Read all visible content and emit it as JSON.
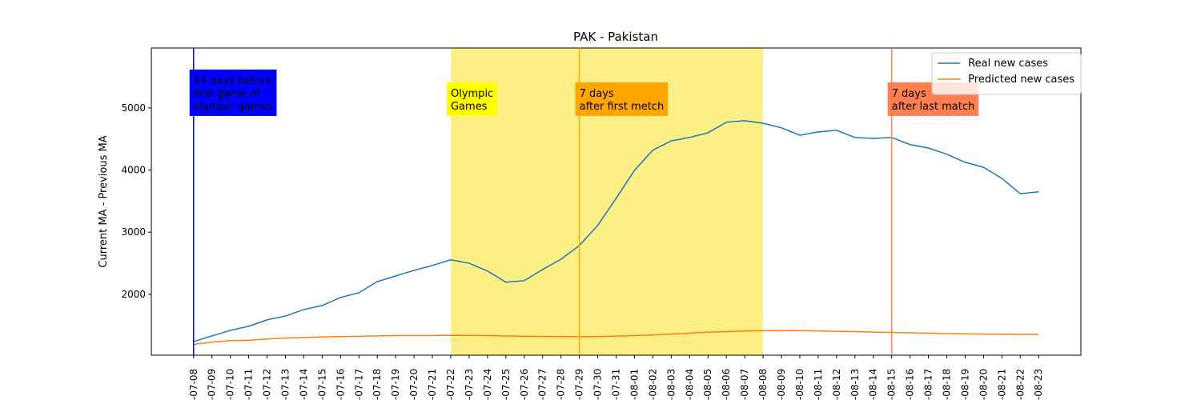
{
  "chart_data": {
    "type": "line",
    "title": "PAK - Pakistan",
    "y_label": "Current MA - Previous MA",
    "categories": [
      "-07-08",
      "-07-09",
      "-07-10",
      "-07-11",
      "-07-12",
      "-07-13",
      "-07-14",
      "-07-15",
      "-07-16",
      "-07-17",
      "-07-18",
      "-07-19",
      "-07-20",
      "-07-21",
      "-07-22",
      "-07-23",
      "-07-24",
      "-07-25",
      "-07-26",
      "-07-27",
      "-07-28",
      "-07-29",
      "-07-30",
      "-07-31",
      "-08-01",
      "-08-02",
      "-08-03",
      "-08-04",
      "-08-05",
      "-08-06",
      "-08-07",
      "-08-08",
      "-08-09",
      "-08-10",
      "-08-11",
      "-08-12",
      "-08-13",
      "-08-14",
      "-08-15",
      "-08-16",
      "-08-17",
      "-08-18",
      "-08-19",
      "-08-20",
      "-08-21",
      "-08-22",
      "-08-23"
    ],
    "series": [
      {
        "name": "Real new cases",
        "color": "#1f77b4",
        "values": [
          1240,
          1330,
          1420,
          1485,
          1590,
          1650,
          1755,
          1820,
          1950,
          2025,
          2205,
          2295,
          2385,
          2465,
          2555,
          2500,
          2375,
          2195,
          2220,
          2400,
          2565,
          2785,
          3110,
          3545,
          3995,
          4320,
          4470,
          4525,
          4600,
          4770,
          4795,
          4755,
          4680,
          4560,
          4615,
          4640,
          4525,
          4510,
          4525,
          4410,
          4355,
          4255,
          4125,
          4045,
          3865,
          3620,
          3650
        ]
      },
      {
        "name": "Predicted new cases",
        "color": "#ff7f0e",
        "values": [
          1195,
          1230,
          1255,
          1260,
          1280,
          1295,
          1305,
          1315,
          1320,
          1325,
          1330,
          1335,
          1335,
          1335,
          1340,
          1338,
          1335,
          1330,
          1325,
          1322,
          1320,
          1318,
          1320,
          1328,
          1335,
          1345,
          1360,
          1375,
          1390,
          1400,
          1410,
          1415,
          1418,
          1415,
          1410,
          1405,
          1400,
          1392,
          1385,
          1380,
          1375,
          1370,
          1365,
          1360,
          1358,
          1355,
          1353
        ]
      }
    ],
    "ylim": [
      1020,
      5965
    ],
    "yticks": [
      2000,
      3000,
      4000,
      5000
    ],
    "legend": "upper right",
    "span": {
      "start": "-07-22",
      "end": "-08-08",
      "color": "#fcef85"
    },
    "vlines": [
      {
        "x": "-07-08",
        "color": "#0000ff"
      },
      {
        "x": "-07-29",
        "color": "#ffa500"
      },
      {
        "x": "-08-15",
        "color": "#ff7f50"
      }
    ],
    "annotations": [
      {
        "x": "-07-08",
        "y": 5000,
        "lines": [
          "14 days before",
          "first game of",
          "olympic games"
        ],
        "color": "#0000ff",
        "text_color": "#ffffff"
      },
      {
        "x": "-07-22",
        "y": 5000,
        "lines": [
          "Olympic",
          "Games"
        ],
        "color": "#ffff00",
        "text_color": "#000000"
      },
      {
        "x": "-07-29",
        "y": 5000,
        "lines": [
          "7 days",
          "after first metch"
        ],
        "color": "#ffa500",
        "text_color": "#000000"
      },
      {
        "x": "-08-15",
        "y": 5000,
        "lines": [
          "7 days",
          "after last match"
        ],
        "color": "#ff7f50",
        "text_color": "#000000"
      }
    ]
  }
}
